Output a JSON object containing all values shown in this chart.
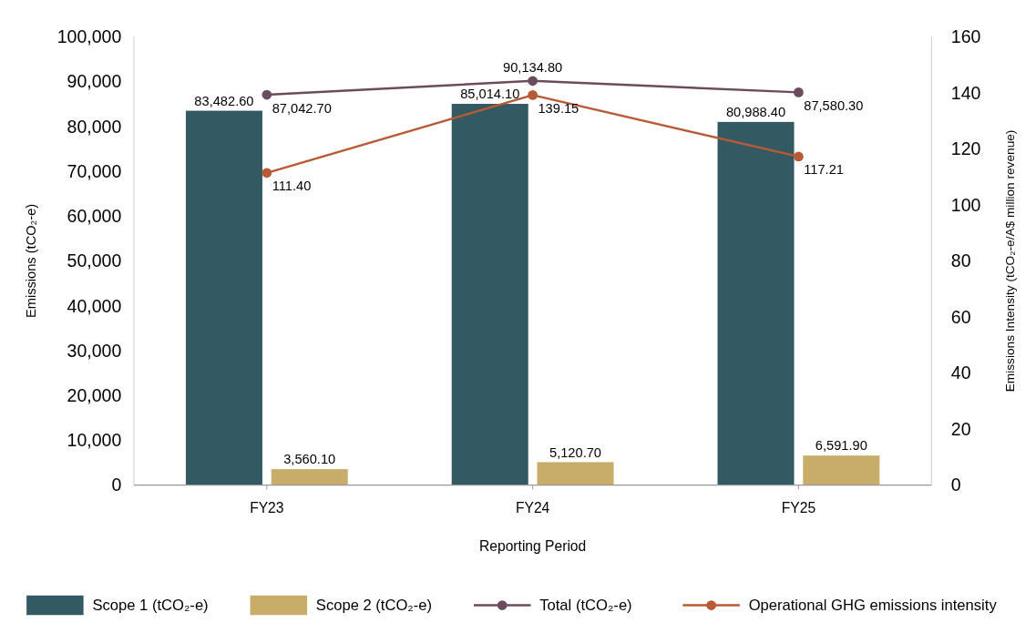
{
  "chart_data": {
    "type": "bar",
    "xlabel": "Reporting Period",
    "ylabel": "Emissions (tCO₂-e)",
    "y2label": "Emissions Intensity (tCO₂-e/A$ million revenue)",
    "categories": [
      "FY23",
      "FY24",
      "FY25"
    ],
    "series": [
      {
        "name": "Scope 1 (tCO₂-e)",
        "color": "#335a63",
        "values": [
          83482.6,
          85014.1,
          80988.4
        ],
        "value_labels": [
          "83,482.60",
          "85,014.10",
          "80,988.40"
        ]
      },
      {
        "name": "Scope 2 (tCO₂-e)",
        "color": "#c8ad6a",
        "values": [
          3560.1,
          5120.7,
          6591.9
        ],
        "value_labels": [
          "3,560.10",
          "5,120.70",
          "6,591.90"
        ]
      },
      {
        "name": "Total (tCO₂-e)",
        "type": "line",
        "color": "#6b4c5e",
        "values": [
          87042.7,
          90134.8,
          87580.3
        ],
        "value_labels": [
          "87,042.70",
          "90,134.80",
          "87,580.30"
        ]
      },
      {
        "name": "Operational GHG emissions intensity",
        "type": "line",
        "axis": "y2",
        "color": "#b85a35",
        "values": [
          111.4,
          139.15,
          117.21
        ],
        "value_labels": [
          "111.40",
          "139.15",
          "117.21"
        ]
      }
    ],
    "ylim": [
      0,
      100000
    ],
    "yticks": [
      {
        "value": 0,
        "label": "0"
      },
      {
        "value": 10000,
        "label": "10,000"
      },
      {
        "value": 20000,
        "label": "20,000"
      },
      {
        "value": 30000,
        "label": "30,000"
      },
      {
        "value": 40000,
        "label": "40,000"
      },
      {
        "value": 50000,
        "label": "50,000"
      },
      {
        "value": 60000,
        "label": "60,000"
      },
      {
        "value": 70000,
        "label": "70,000"
      },
      {
        "value": 80000,
        "label": "80,000"
      },
      {
        "value": 90000,
        "label": "90,000"
      },
      {
        "value": 100000,
        "label": "100,000"
      }
    ],
    "y2lim": [
      0,
      160
    ],
    "y2ticks": [
      0,
      20,
      40,
      60,
      80,
      100,
      120,
      140,
      160
    ],
    "marker": "circle",
    "legend": "bottom",
    "grid": false
  }
}
